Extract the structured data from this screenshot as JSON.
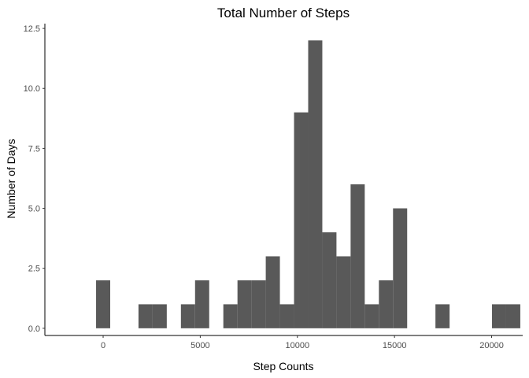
{
  "chart_data": {
    "type": "bar",
    "title": "Total Number of Steps",
    "xlabel": "Step Counts",
    "ylabel": "Number of Days",
    "xlim": [
      -3000,
      21600
    ],
    "ylim": [
      -0.3,
      12.7
    ],
    "bin_width": 728,
    "x_ticks": [
      0,
      5000,
      10000,
      15000,
      20000
    ],
    "x_tick_labels": [
      "0",
      "5000",
      "10000",
      "15000",
      "20000"
    ],
    "y_ticks": [
      0,
      2.5,
      5,
      7.5,
      10,
      12.5
    ],
    "y_tick_labels": [
      "0.0",
      "2.5",
      "5.0",
      "7.5",
      "10.0",
      "12.5"
    ],
    "bins": [
      {
        "x": 0,
        "count": 2
      },
      {
        "x": 728,
        "count": 0
      },
      {
        "x": 1456,
        "count": 0
      },
      {
        "x": 2184,
        "count": 1
      },
      {
        "x": 2912,
        "count": 1
      },
      {
        "x": 3640,
        "count": 0
      },
      {
        "x": 4368,
        "count": 1
      },
      {
        "x": 5096,
        "count": 2
      },
      {
        "x": 5824,
        "count": 0
      },
      {
        "x": 6552,
        "count": 1
      },
      {
        "x": 7280,
        "count": 2
      },
      {
        "x": 8008,
        "count": 2
      },
      {
        "x": 8736,
        "count": 3
      },
      {
        "x": 9464,
        "count": 1
      },
      {
        "x": 10192,
        "count": 9
      },
      {
        "x": 10920,
        "count": 12
      },
      {
        "x": 11648,
        "count": 4
      },
      {
        "x": 12376,
        "count": 3
      },
      {
        "x": 13104,
        "count": 6
      },
      {
        "x": 13832,
        "count": 1
      },
      {
        "x": 14560,
        "count": 2
      },
      {
        "x": 15288,
        "count": 5
      },
      {
        "x": 16016,
        "count": 0
      },
      {
        "x": 16744,
        "count": 0
      },
      {
        "x": 17472,
        "count": 1
      },
      {
        "x": 18200,
        "count": 0
      },
      {
        "x": 18928,
        "count": 0
      },
      {
        "x": 19656,
        "count": 0
      },
      {
        "x": 20384,
        "count": 1
      },
      {
        "x": 21112,
        "count": 1
      }
    ],
    "bar_color": "#595959",
    "grid": false,
    "legend": "none"
  }
}
